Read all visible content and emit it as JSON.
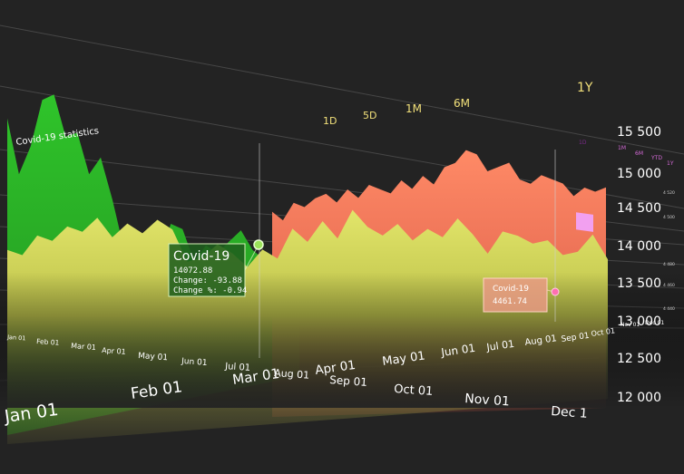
{
  "chart_data": {
    "type": "area",
    "title": "Covid-19 statistics",
    "range_buttons": [
      "1D",
      "5D",
      "1M",
      "6M",
      "1Y"
    ],
    "range_buttons_small": [
      "1D",
      "1M",
      "6M",
      "YTD",
      "1Y"
    ],
    "selected_range_small": "1D",
    "x_months_front": [
      "Jan 01",
      "Feb 01",
      "Mar 01",
      "Apr 01",
      "May 01",
      "Jun 01",
      "Jul 01",
      "Aug 01",
      "Sep 01",
      "Oct 01",
      "Nov 01",
      "Dec 1"
    ],
    "x_months_back": [
      "Jan 01",
      "Feb 01",
      "Mar 01",
      "Apr 01",
      "May 01",
      "Jun 01",
      "Jul 01",
      "Aug 01",
      "Sep 01",
      "Oct 01"
    ],
    "x_labels_right": [
      "Nov 01",
      "Dec 01"
    ],
    "y_ticks": [
      "15 500",
      "15 000",
      "14 500",
      "14 000",
      "13 500",
      "13 000",
      "12 500",
      "12 000"
    ],
    "y_ticks_small": [
      "4 520",
      "4 500",
      "4 480",
      "4 460",
      "4 440"
    ],
    "ylim": [
      12000,
      15500
    ],
    "series": [
      {
        "values": [
          15050,
          14500,
          14820,
          15350,
          15450,
          15020,
          15100,
          14650,
          14880,
          14400,
          13800,
          13500,
          13600,
          13700,
          14200,
          14150,
          13700,
          13950,
          13850,
          14050,
          14250,
          13950,
          13800,
          13900,
          14000,
          13750
        ]
      },
      {
        "values": [
          13750,
          13700,
          13900,
          13850,
          14000,
          13950,
          14100,
          13900,
          14050,
          13950,
          14100,
          14000,
          13650,
          13700,
          13850,
          13750,
          13600,
          13800,
          13700,
          14050,
          13900,
          14150,
          13950,
          14300,
          14100,
          14000,
          14150,
          13950,
          14100,
          14000,
          14250,
          14050,
          13800,
          14100,
          14050,
          13950,
          14000,
          13800,
          13850,
          14100,
          13750
        ]
      },
      {
        "values": [
          14150,
          14050,
          14250,
          14200,
          14300,
          14350,
          14250,
          14400,
          14300,
          14450,
          14400,
          14350,
          14500,
          14400,
          14550,
          14450,
          14650,
          14700,
          14850,
          14800,
          14600,
          14650,
          14700,
          14500,
          14450,
          14550,
          14500,
          14450,
          14300,
          14400,
          14350,
          14400
        ]
      }
    ],
    "tooltips": [
      {
        "title": "Covid-19",
        "value": "14072.88",
        "change": "Change: -93.88",
        "change_pct": "Change %: -0.94"
      },
      {
        "title": "Covid-19",
        "value": "4461.74"
      }
    ]
  }
}
